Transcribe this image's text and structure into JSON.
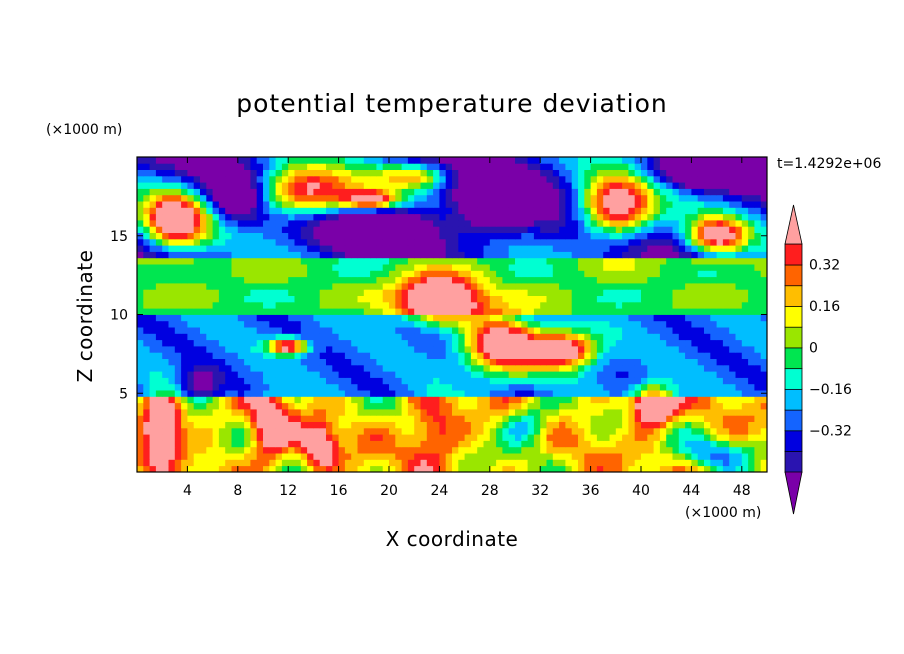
{
  "chart_data": {
    "type": "heatmap",
    "title": "potential temperature deviation",
    "xlabel": "X coordinate",
    "ylabel": "Z coordinate",
    "x_unit": "(×1000 m)",
    "y_unit": "(×1000 m)",
    "time_label": "t=1.4292e+06",
    "xlim": [
      0,
      50
    ],
    "ylim": [
      0,
      20
    ],
    "x_ticks": [
      4,
      8,
      12,
      16,
      20,
      24,
      28,
      32,
      36,
      40,
      44,
      48
    ],
    "y_ticks": [
      5,
      10,
      15
    ],
    "colorbar": {
      "levels": [
        -0.48,
        -0.4,
        -0.32,
        -0.24,
        -0.16,
        -0.08,
        0,
        0.08,
        0.16,
        0.24,
        0.32,
        0.4
      ],
      "colors": [
        "#7a00a8",
        "#2a14b0",
        "#0000e0",
        "#1464ff",
        "#00beff",
        "#00ffd2",
        "#00e650",
        "#9ae600",
        "#ffff00",
        "#ffbe00",
        "#ff6400",
        "#ff1e1e",
        "#ffa0a0"
      ],
      "tick_values": [
        0.32,
        0.16,
        0,
        -0.16,
        -0.32
      ],
      "tick_labels": [
        "0.32",
        "0.16",
        "0",
        "−0.16",
        "−0.32"
      ],
      "extend": "both"
    },
    "field_summary": [
      {
        "region": "upper layer z 15–20",
        "values": "strong negative (≤ −0.48) and strong positive (≥ 0.48) patches"
      },
      {
        "region": "z 10–14",
        "values": "mostly −0.16 to 0.08 with pink blobs near x 20–32"
      },
      {
        "region": "z 5–10",
        "values": "mostly −0.40 to −0.16"
      },
      {
        "region": "z 0–5",
        "values": "mostly 0 to 0.40 with warm plumes"
      }
    ]
  }
}
